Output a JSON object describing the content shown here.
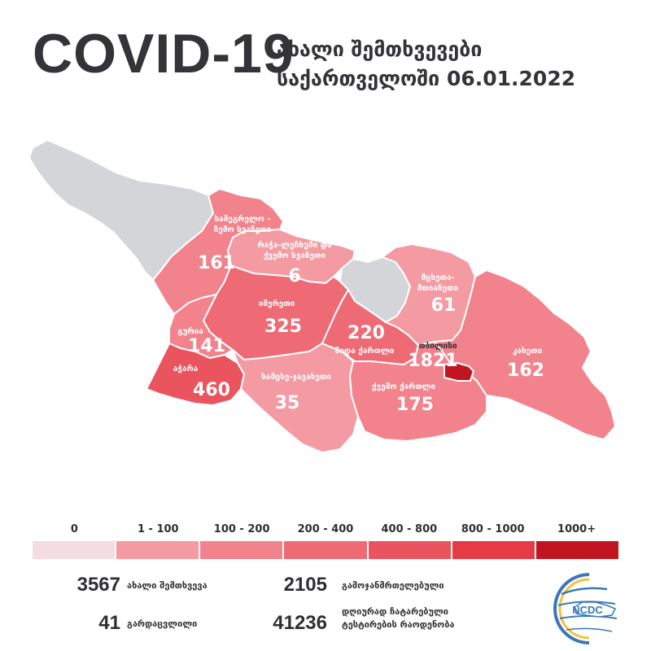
{
  "header": {
    "title": "COVID-19",
    "subtitle_line1": "ახალი შემთხვევები",
    "subtitle_line2": "საქართველოში 06.01.2022"
  },
  "colors": {
    "no_data": "#d4d5d8",
    "c1_100": "#f49aa2",
    "c100_200": "#f2838c",
    "c200_400": "#ee6a74",
    "c400_800": "#ea545e",
    "c800_1000": "#e43b45",
    "c1000_plus": "#c11521",
    "text": "#2f2f33"
  },
  "regions": [
    {
      "name_lines": [
        "სამეგრელო -",
        "ზემო სვანეთი"
      ],
      "value": "161",
      "scale": "c100_200"
    },
    {
      "name_lines": [
        "რაჭა-ლეჩხუმი და",
        "ქვემო სვანეთი"
      ],
      "value": "6",
      "scale": "c1_100"
    },
    {
      "name_lines": [
        "იმერეთი"
      ],
      "value": "325",
      "scale": "c200_400"
    },
    {
      "name_lines": [
        "გურია"
      ],
      "value": "141",
      "scale": "c100_200"
    },
    {
      "name_lines": [
        "აჭარა"
      ],
      "value": "460",
      "scale": "c400_800"
    },
    {
      "name_lines": [
        "სამცხე-ჯავახეთი"
      ],
      "value": "35",
      "scale": "c1_100"
    },
    {
      "name_lines": [
        "შიდა ქართლი"
      ],
      "value": "220",
      "scale": "c200_400"
    },
    {
      "name_lines": [
        "მცხეთა-",
        "მთიანეთი"
      ],
      "value": "61",
      "scale": "c1_100"
    },
    {
      "name_lines": [
        "თბილისი"
      ],
      "value": "1821",
      "scale": "c1000_plus"
    },
    {
      "name_lines": [
        "ქვემო ქართლი"
      ],
      "value": "175",
      "scale": "c100_200"
    },
    {
      "name_lines": [
        "კახეთი"
      ],
      "value": "162",
      "scale": "c100_200"
    }
  ],
  "legend": [
    {
      "label": "0",
      "color": "#f3dde2"
    },
    {
      "label": "1 - 100",
      "color": "#f49aa2"
    },
    {
      "label": "100 - 200",
      "color": "#f2838c"
    },
    {
      "label": "200 - 400",
      "color": "#ee6a74"
    },
    {
      "label": "400 - 800",
      "color": "#ea545e"
    },
    {
      "label": "800 - 1000",
      "color": "#e43b45"
    },
    {
      "label": "1000+",
      "color": "#c11521"
    }
  ],
  "stats": {
    "new_cases": {
      "value": "3567",
      "label": "ახალი შემთხვევა"
    },
    "recovered": {
      "value": "2105",
      "label": "გამოჯანმრთელებული"
    },
    "deaths": {
      "value": "41",
      "label": "გარდაცვლილი"
    },
    "tests": {
      "value": "41236",
      "label_line1": "დღიურად ჩატარებული",
      "label_line2": "ტესტირების რაოდენობა"
    }
  },
  "logo": {
    "text": "NCDC"
  }
}
